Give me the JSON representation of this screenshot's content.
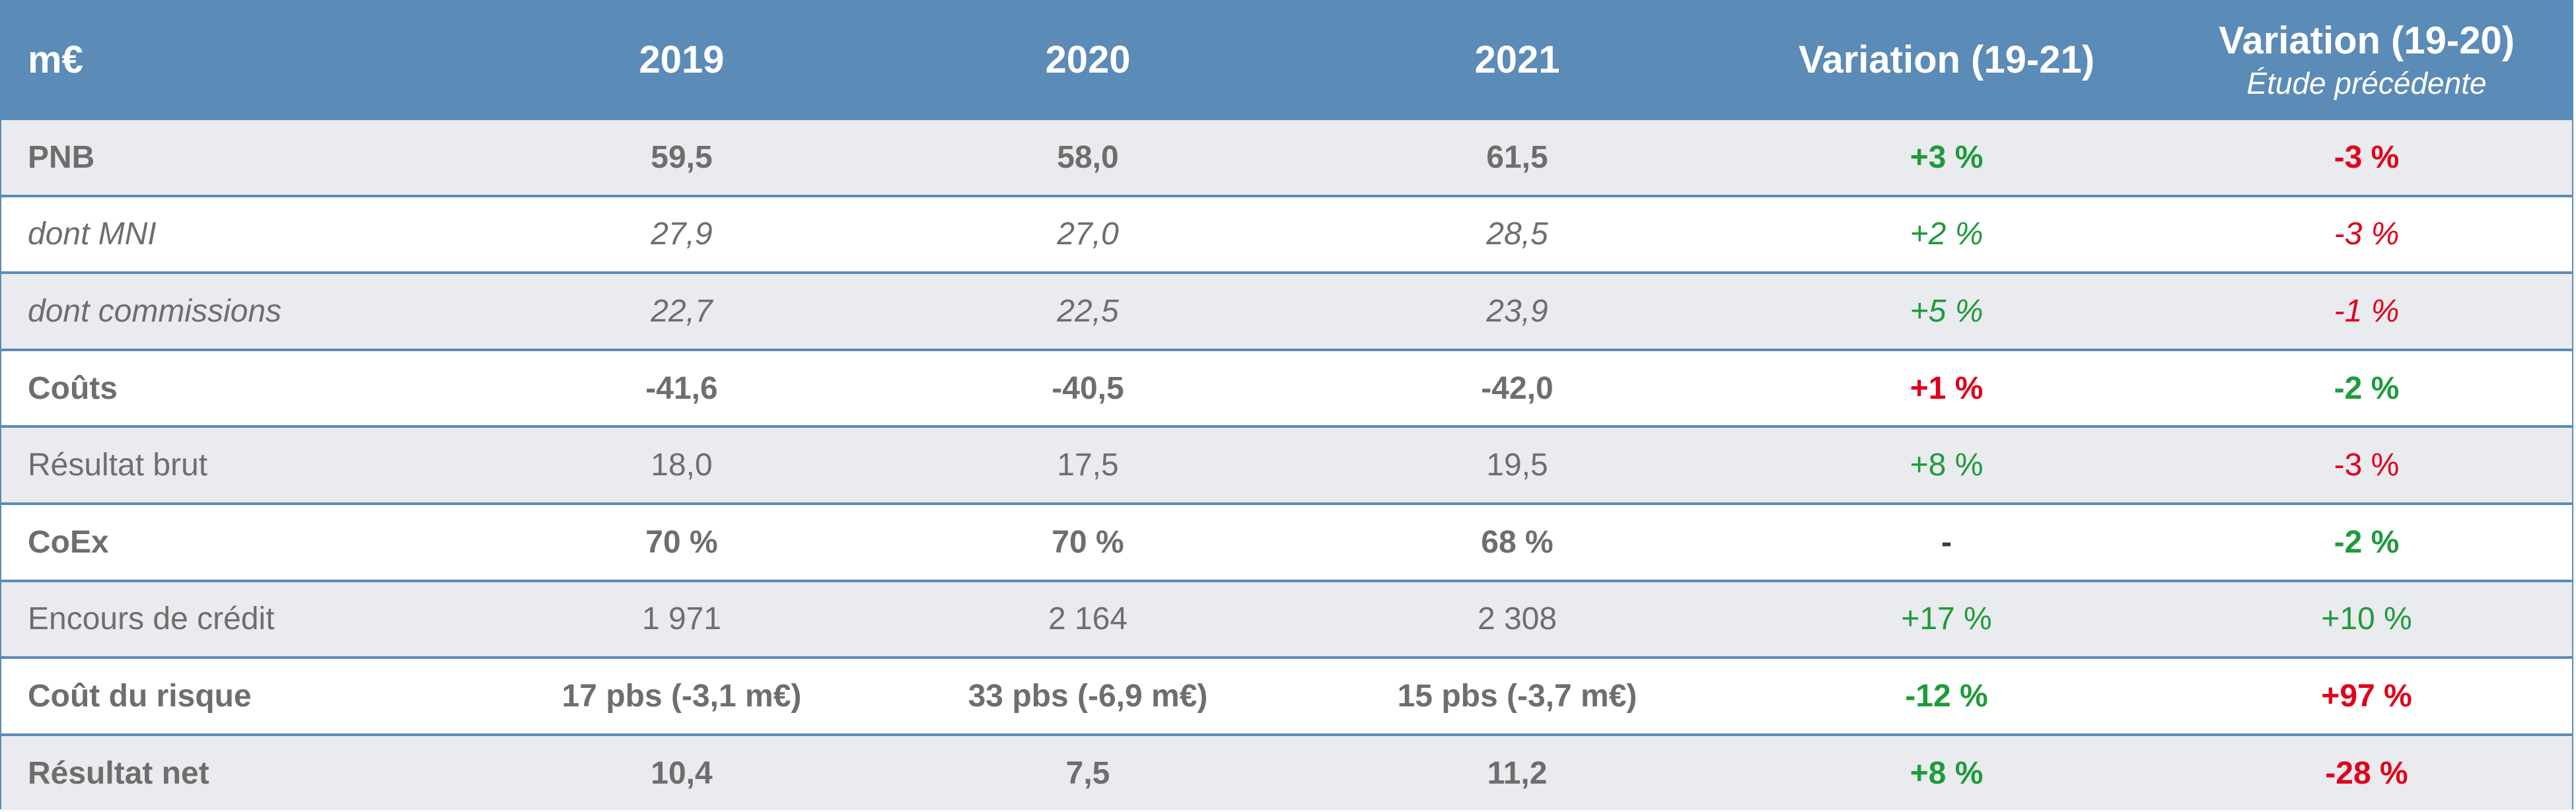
{
  "chart_data": {
    "type": "table",
    "columns": [
      "m€",
      "2019",
      "2020",
      "2021",
      "Variation (19-21)",
      "Variation (19-20)"
    ],
    "column_subtitles": {
      "Variation (19-20)": "Étude précédente"
    },
    "rows": [
      {
        "label": "PNB",
        "values": [
          "59,5",
          "58,0",
          "61,5",
          "+3 %",
          "-3 %"
        ],
        "style": "bold",
        "colors": [
          "",
          "",
          "",
          "#1f9b3a",
          "#e0001b"
        ]
      },
      {
        "label": "dont MNI",
        "values": [
          "27,9",
          "27,0",
          "28,5",
          "+2 %",
          "-3 %"
        ],
        "style": "italic",
        "colors": [
          "",
          "",
          "",
          "#1f9b3a",
          "#e0001b"
        ]
      },
      {
        "label": "dont commissions",
        "values": [
          "22,7",
          "22,5",
          "23,9",
          "+5 %",
          "-1 %"
        ],
        "style": "italic",
        "colors": [
          "",
          "",
          "",
          "#1f9b3a",
          "#e0001b"
        ]
      },
      {
        "label": "Coûts",
        "values": [
          "-41,6",
          "-40,5",
          "-42,0",
          "+1 %",
          "-2 %"
        ],
        "style": "bold",
        "colors": [
          "",
          "",
          "",
          "#e0001b",
          "#1f9b3a"
        ]
      },
      {
        "label": "Résultat brut",
        "values": [
          "18,0",
          "17,5",
          "19,5",
          "+8 %",
          "-3 %"
        ],
        "style": "normal",
        "colors": [
          "",
          "",
          "",
          "#1f9b3a",
          "#e0001b"
        ]
      },
      {
        "label": "CoEx",
        "values": [
          "70 %",
          "70 %",
          "68 %",
          "-",
          "-2 %"
        ],
        "style": "bold",
        "colors": [
          "",
          "",
          "",
          "#2f3b4f",
          "#1f9b3a"
        ]
      },
      {
        "label": "Encours de crédit",
        "values": [
          "1 971",
          "2 164",
          "2 308",
          "+17 %",
          "+10 %"
        ],
        "style": "normal",
        "colors": [
          "",
          "",
          "",
          "#1f9b3a",
          "#1f9b3a"
        ]
      },
      {
        "label": "Coût du risque",
        "values": [
          "17 pbs (-3,1 m€)",
          "33 pbs (-6,9 m€)",
          "15 pbs (-3,7 m€)",
          "-12 %",
          "+97 %"
        ],
        "style": "bold",
        "colors": [
          "",
          "",
          "",
          "#1f9b3a",
          "#e0001b"
        ]
      },
      {
        "label": "Résultat net",
        "values": [
          "10,4",
          "7,5",
          "11,2",
          "+8 %",
          "-28 %"
        ],
        "style": "bold",
        "colors": [
          "",
          "",
          "",
          "#1f9b3a",
          "#e0001b"
        ]
      }
    ]
  }
}
